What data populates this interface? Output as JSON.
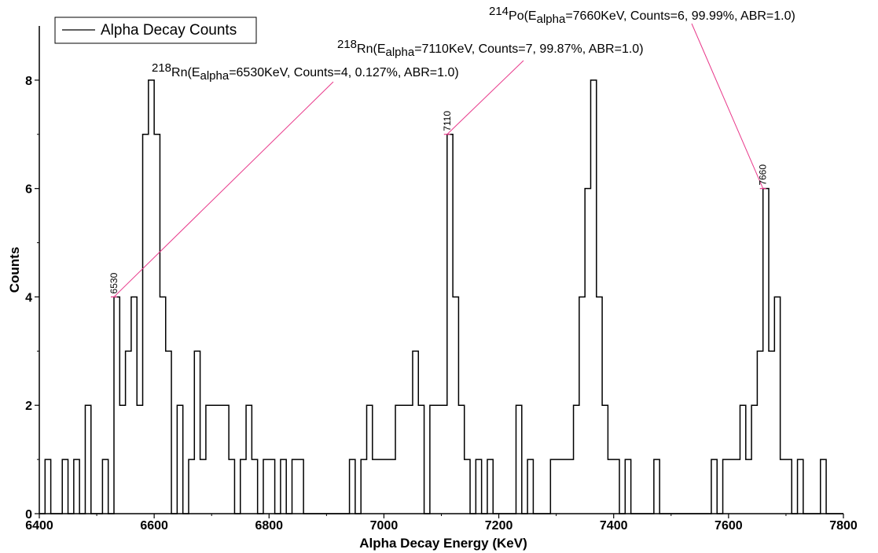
{
  "chart_data": {
    "type": "histogram",
    "xlabel": "Alpha Decay Energy (KeV)",
    "ylabel": "Counts",
    "xlim": [
      6400,
      7800
    ],
    "ylim": [
      0,
      9
    ],
    "x_ticks": [
      "6400",
      "6600",
      "6800",
      "7000",
      "7200",
      "7400",
      "7600",
      "7800"
    ],
    "y_ticks": [
      "0",
      "2",
      "4",
      "6",
      "8"
    ],
    "grid": false,
    "legend": {
      "position": "top-left",
      "entries": [
        "Alpha Decay Counts"
      ]
    },
    "series": [
      {
        "name": "Alpha Decay Counts",
        "bin_width": 10,
        "bins": [
          [
            6410,
            1
          ],
          [
            6440,
            1
          ],
          [
            6460,
            1
          ],
          [
            6480,
            2
          ],
          [
            6510,
            1
          ],
          [
            6530,
            4
          ],
          [
            6540,
            2
          ],
          [
            6550,
            3
          ],
          [
            6560,
            4
          ],
          [
            6570,
            2
          ],
          [
            6580,
            7
          ],
          [
            6590,
            8
          ],
          [
            6600,
            7
          ],
          [
            6610,
            4
          ],
          [
            6620,
            3
          ],
          [
            6640,
            2
          ],
          [
            6660,
            1
          ],
          [
            6670,
            3
          ],
          [
            6680,
            1
          ],
          [
            6690,
            2
          ],
          [
            6700,
            2
          ],
          [
            6710,
            2
          ],
          [
            6720,
            2
          ],
          [
            6730,
            1
          ],
          [
            6750,
            1
          ],
          [
            6760,
            2
          ],
          [
            6770,
            1
          ],
          [
            6790,
            1
          ],
          [
            6800,
            1
          ],
          [
            6820,
            1
          ],
          [
            6840,
            1
          ],
          [
            6850,
            1
          ],
          [
            6940,
            1
          ],
          [
            6960,
            1
          ],
          [
            6970,
            2
          ],
          [
            6980,
            1
          ],
          [
            6990,
            1
          ],
          [
            7000,
            1
          ],
          [
            7010,
            1
          ],
          [
            7020,
            2
          ],
          [
            7030,
            2
          ],
          [
            7040,
            2
          ],
          [
            7050,
            3
          ],
          [
            7060,
            2
          ],
          [
            7080,
            2
          ],
          [
            7090,
            2
          ],
          [
            7100,
            2
          ],
          [
            7110,
            7
          ],
          [
            7120,
            4
          ],
          [
            7130,
            2
          ],
          [
            7140,
            1
          ],
          [
            7160,
            1
          ],
          [
            7180,
            1
          ],
          [
            7230,
            2
          ],
          [
            7250,
            1
          ],
          [
            7290,
            1
          ],
          [
            7300,
            1
          ],
          [
            7310,
            1
          ],
          [
            7320,
            1
          ],
          [
            7330,
            2
          ],
          [
            7340,
            4
          ],
          [
            7350,
            6
          ],
          [
            7360,
            8
          ],
          [
            7370,
            4
          ],
          [
            7380,
            2
          ],
          [
            7390,
            1
          ],
          [
            7400,
            1
          ],
          [
            7420,
            1
          ],
          [
            7470,
            1
          ],
          [
            7570,
            1
          ],
          [
            7590,
            1
          ],
          [
            7600,
            1
          ],
          [
            7610,
            1
          ],
          [
            7620,
            2
          ],
          [
            7630,
            1
          ],
          [
            7640,
            2
          ],
          [
            7650,
            3
          ],
          [
            7660,
            6
          ],
          [
            7670,
            3
          ],
          [
            7680,
            4
          ],
          [
            7690,
            1
          ],
          [
            7700,
            1
          ],
          [
            7720,
            1
          ],
          [
            7760,
            1
          ]
        ]
      }
    ],
    "peak_labels": [
      {
        "x": 6530,
        "y": 4,
        "text": "6530"
      },
      {
        "x": 7110,
        "y": 7,
        "text": "7110"
      },
      {
        "x": 7660,
        "y": 6,
        "text": "7660"
      }
    ],
    "annotations": [
      {
        "peak_x": 6530,
        "peak_y": 4,
        "mass": "218",
        "element": "Rn",
        "sub_open": "(E",
        "sub": "alpha",
        "rest": "=6530KeV, Counts=4, 0.127%, ABR=1.0)"
      },
      {
        "peak_x": 7110,
        "peak_y": 7,
        "mass": "218",
        "element": "Rn",
        "sub_open": "(E",
        "sub": "alpha",
        "rest": "=7110KeV, Counts=7, 99.87%, ABR=1.0)"
      },
      {
        "peak_x": 7660,
        "peak_y": 6,
        "mass": "214",
        "element": "Po",
        "sub_open": "(E",
        "sub": "alpha",
        "rest": "=7660KeV, Counts=6, 99.99%, ABR=1.0)"
      }
    ],
    "colors": {
      "histogram": "#000000",
      "annotation_line": "#e8388a",
      "background": "#ffffff"
    }
  }
}
